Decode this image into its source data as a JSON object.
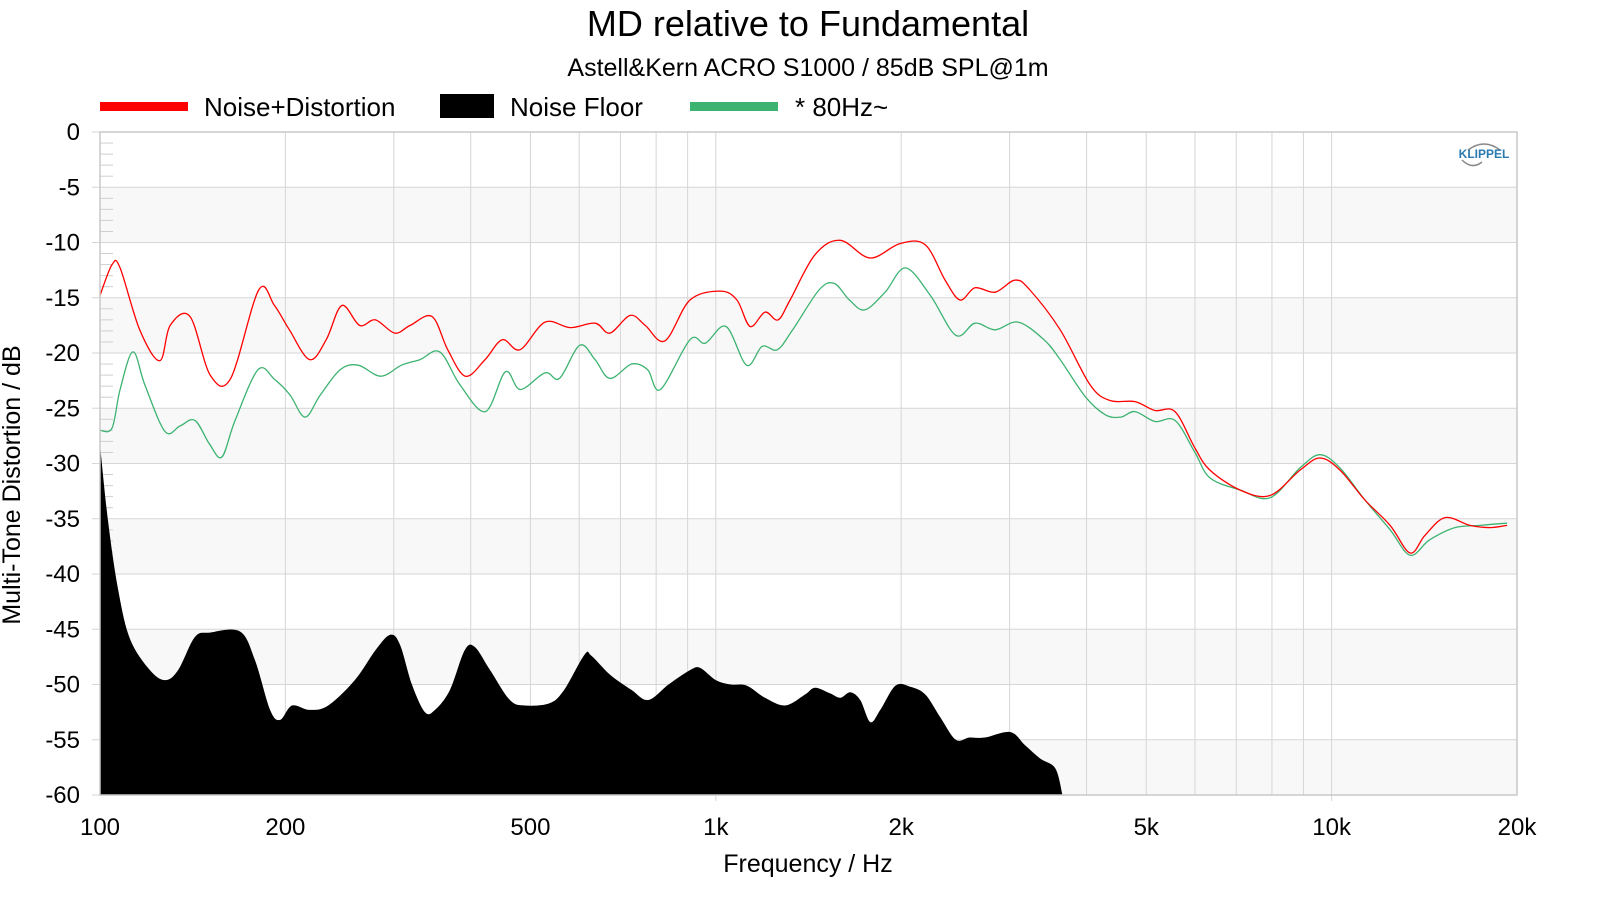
{
  "chart_data": {
    "type": "line",
    "title": "MD relative to Fundamental",
    "subtitle": "Astell&Kern ACRO S1000 / 85dB SPL@1m",
    "xlabel": "Frequency / Hz",
    "ylabel": "Multi-Tone Distortion / dB",
    "xscale": "log",
    "xlim": [
      100,
      20000
    ],
    "ylim": [
      -60,
      0
    ],
    "grid": true,
    "legend_position": "top",
    "watermark": "KLIPPEL",
    "x_ticks": [
      {
        "value": 100,
        "label": "100"
      },
      {
        "value": 200,
        "label": "200"
      },
      {
        "value": 500,
        "label": "500"
      },
      {
        "value": 1000,
        "label": "1k"
      },
      {
        "value": 2000,
        "label": "2k"
      },
      {
        "value": 5000,
        "label": "5k"
      },
      {
        "value": 10000,
        "label": "10k"
      },
      {
        "value": 20000,
        "label": "20k"
      }
    ],
    "y_ticks": [
      {
        "value": 0,
        "label": "0"
      },
      {
        "value": -5,
        "label": "-5"
      },
      {
        "value": -10,
        "label": "-10"
      },
      {
        "value": -15,
        "label": "-15"
      },
      {
        "value": -20,
        "label": "-20"
      },
      {
        "value": -25,
        "label": "-25"
      },
      {
        "value": -30,
        "label": "-30"
      },
      {
        "value": -35,
        "label": "-35"
      },
      {
        "value": -40,
        "label": "-40"
      },
      {
        "value": -45,
        "label": "-45"
      },
      {
        "value": -50,
        "label": "-50"
      },
      {
        "value": -55,
        "label": "-55"
      },
      {
        "value": -60,
        "label": "-60"
      }
    ],
    "series": [
      {
        "name": "Noise+Distortion",
        "style": "line",
        "color": "#ff0000",
        "x": [
          100,
          104.6,
          107.8,
          116,
          125,
          130,
          140,
          151,
          163,
          181,
          192,
          203,
          219,
          233,
          247,
          264,
          280,
          301,
          319,
          346,
          367,
          392,
          422,
          450,
          481,
          528,
          580,
          637,
          673,
          726,
          768,
          827,
          908,
          1016,
          1082,
          1137,
          1202,
          1262,
          1320,
          1449,
          1592,
          1780,
          1991,
          2188,
          2357,
          2493,
          2636,
          2841,
          3062,
          3236,
          3624,
          4055,
          4368,
          4795,
          5164,
          5568,
          5998,
          6345,
          7100,
          7943,
          8886,
          9574,
          10317,
          11326,
          12446,
          13412,
          14180,
          15280,
          16778,
          18080,
          19270
        ],
        "y": [
          -14.8,
          -12.0,
          -12.3,
          -17.9,
          -20.7,
          -17.5,
          -16.7,
          -22.0,
          -22.3,
          -14.3,
          -15.7,
          -17.9,
          -20.6,
          -18.8,
          -15.7,
          -17.5,
          -17.0,
          -18.2,
          -17.5,
          -16.7,
          -19.7,
          -22.1,
          -20.6,
          -18.8,
          -19.7,
          -17.2,
          -17.7,
          -17.3,
          -18.2,
          -16.6,
          -17.5,
          -18.9,
          -15.2,
          -14.4,
          -15.2,
          -17.6,
          -16.3,
          -17.0,
          -15.2,
          -11.1,
          -9.8,
          -11.4,
          -10.1,
          -10.2,
          -13.4,
          -15.2,
          -14.1,
          -14.5,
          -13.4,
          -14.3,
          -17.9,
          -22.9,
          -24.3,
          -24.4,
          -25.2,
          -25.3,
          -28.6,
          -30.6,
          -32.4,
          -32.9,
          -30.6,
          -29.5,
          -30.6,
          -33.3,
          -35.6,
          -38.1,
          -36.5,
          -34.9,
          -35.6,
          -35.8,
          -35.6
        ]
      },
      {
        "name": "Noise Floor",
        "style": "area",
        "color": "#000000",
        "x": [
          100,
          103,
          107,
          111.9,
          120.5,
          127.5,
          133.9,
          142.6,
          150.8,
          168.8,
          178.5,
          188.9,
          196.1,
          205,
          219,
          234.7,
          259.3,
          280,
          296,
          307,
          321,
          337,
          350,
          370,
          391,
          406,
          430,
          463,
          490,
          537,
          567,
          612,
          628,
          673,
          730,
          777,
          838,
          908,
          943,
          1000,
          1058,
          1122,
          1202,
          1296,
          1397,
          1449,
          1532,
          1592,
          1653,
          1716,
          1782,
          1850,
          1958,
          2069,
          2188,
          2317,
          2453,
          2581,
          2734,
          3006,
          3179,
          3362,
          3560,
          3656
        ],
        "y": [
          -28.3,
          -35.1,
          -41.4,
          -45.9,
          -48.7,
          -49.6,
          -48.7,
          -45.7,
          -45.3,
          -45.2,
          -47.8,
          -52.3,
          -53.2,
          -51.9,
          -52.3,
          -51.9,
          -49.6,
          -46.9,
          -45.5,
          -46.4,
          -50.0,
          -52.5,
          -52.3,
          -50.5,
          -46.9,
          -46.6,
          -48.7,
          -51.4,
          -51.9,
          -51.7,
          -50.5,
          -47.3,
          -47.4,
          -49.1,
          -50.5,
          -51.4,
          -50.0,
          -48.7,
          -48.5,
          -49.6,
          -50.0,
          -50.1,
          -51.2,
          -51.9,
          -50.9,
          -50.3,
          -50.8,
          -51.2,
          -50.7,
          -51.4,
          -53.4,
          -52.3,
          -50.1,
          -50.2,
          -50.9,
          -53.0,
          -55.0,
          -54.8,
          -54.8,
          -54.3,
          -55.5,
          -56.7,
          -57.6,
          -60.0
        ]
      },
      {
        "name": "* 80Hz~",
        "style": "line",
        "color": "#3cb371",
        "x": [
          100,
          104.6,
          107.8,
          113.1,
          118.3,
          127.5,
          134.9,
          142.6,
          150.8,
          157.8,
          165.7,
          180.6,
          192.2,
          203.5,
          215.3,
          227.9,
          245.6,
          262.6,
          285.7,
          308.8,
          331,
          356.3,
          384.4,
          422.5,
          455.3,
          481.4,
          527.9,
          557.5,
          601.2,
          636.6,
          673,
          730,
          775,
          813,
          908,
          962,
          1039,
          1122,
          1189,
          1259,
          1333,
          1471,
          1557,
          1648,
          1745,
          1883,
          2032,
          2231,
          2453,
          2636,
          2841,
          3097,
          3412,
          3624,
          3987,
          4295,
          4546,
          4795,
          5164,
          5568,
          5998,
          6345,
          7100,
          7943,
          8886,
          9574,
          10317,
          11326,
          12446,
          13412,
          14435,
          15856,
          17420,
          19270
        ],
        "y": [
          -27.0,
          -26.8,
          -23.3,
          -19.9,
          -22.9,
          -27.1,
          -26.6,
          -26.1,
          -28.3,
          -29.4,
          -26.1,
          -21.5,
          -22.4,
          -23.8,
          -25.8,
          -23.8,
          -21.5,
          -21.1,
          -22.1,
          -21.1,
          -20.6,
          -19.9,
          -22.9,
          -25.3,
          -21.7,
          -23.3,
          -21.8,
          -22.3,
          -19.3,
          -20.6,
          -22.3,
          -21.0,
          -21.5,
          -23.3,
          -18.8,
          -19.1,
          -17.6,
          -21.1,
          -19.4,
          -19.7,
          -17.9,
          -14.3,
          -13.7,
          -15.2,
          -16.1,
          -14.5,
          -12.3,
          -14.8,
          -18.4,
          -17.3,
          -17.9,
          -17.2,
          -18.8,
          -20.6,
          -24.0,
          -25.6,
          -25.8,
          -25.3,
          -26.2,
          -26.1,
          -29.0,
          -31.3,
          -32.4,
          -33.1,
          -30.4,
          -29.2,
          -30.4,
          -33.3,
          -36.0,
          -38.3,
          -36.9,
          -35.8,
          -35.6,
          -35.4
        ]
      }
    ]
  }
}
